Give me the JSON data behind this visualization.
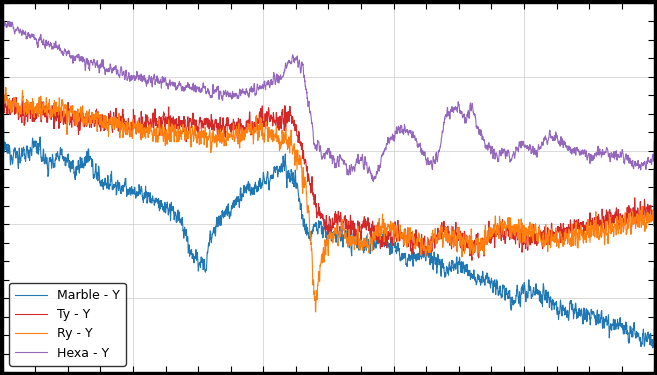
{
  "legend_entries": [
    "Marble - Y",
    "Ty - Y",
    "Ry - Y",
    "Hexa - Y"
  ],
  "colors": [
    "#1f77b4",
    "#d62728",
    "#ff7f0e",
    "#9467bd"
  ],
  "linewidth": 0.8,
  "background_color": "#ffffff",
  "grid_color": "#cccccc",
  "xlim": [
    0,
    1000
  ],
  "ylim": [
    -80,
    20
  ],
  "figsize": [
    6.57,
    3.75
  ],
  "dpi": 100
}
